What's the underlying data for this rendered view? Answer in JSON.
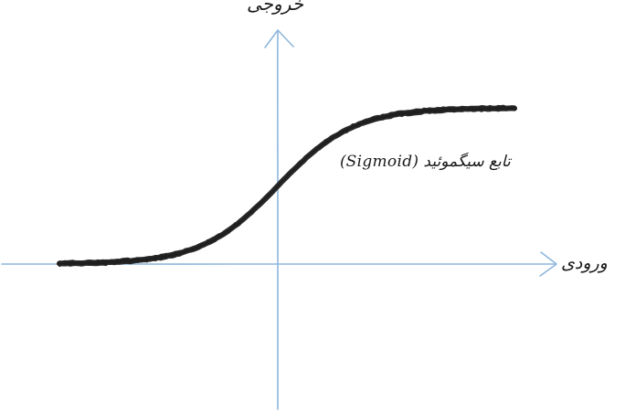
{
  "labels": {
    "y_axis": "خروجی",
    "x_axis": "ورودی",
    "function_name": "تابع سیگموئید (Sigmoid)"
  },
  "curve": {
    "type": "sigmoid",
    "name": "Sigmoid"
  },
  "colors": {
    "axis": "#8fb6dc",
    "curve": "#1f1f1f",
    "text": "#1a1a1a",
    "background": "#ffffff"
  }
}
